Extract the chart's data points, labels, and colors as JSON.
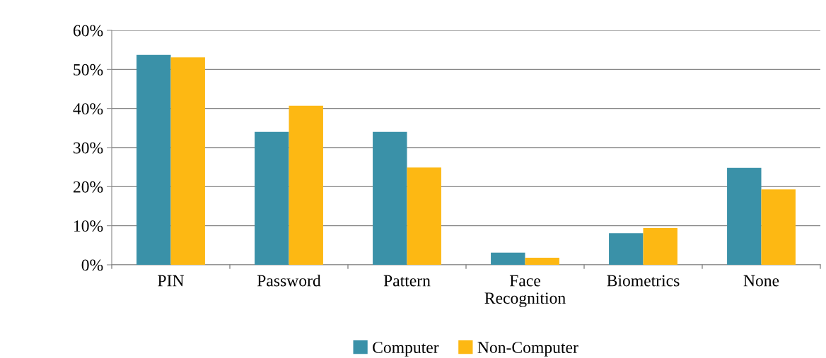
{
  "chart_data": {
    "type": "bar",
    "categories": [
      "PIN",
      "Password",
      "Pattern",
      "Face Recognition",
      "Biometrics",
      "None"
    ],
    "series": [
      {
        "name": "Computer",
        "color": "#3a91a8",
        "values": [
          53.7,
          34.0,
          34.0,
          3.1,
          8.1,
          24.8
        ]
      },
      {
        "name": "Non-Computer",
        "color": "#fdb813",
        "values": [
          53.1,
          40.7,
          24.9,
          1.8,
          9.4,
          19.3
        ]
      }
    ],
    "ylim": [
      0,
      60
    ],
    "yticks": [
      {
        "value": 0,
        "label": "0%"
      },
      {
        "value": 10,
        "label": "10%"
      },
      {
        "value": 20,
        "label": "20%"
      },
      {
        "value": 30,
        "label": "30%"
      },
      {
        "value": 40,
        "label": "40%"
      },
      {
        "value": 50,
        "label": "50%"
      },
      {
        "value": 60,
        "label": "60%"
      }
    ],
    "grid": "y",
    "legend": "bottom"
  }
}
